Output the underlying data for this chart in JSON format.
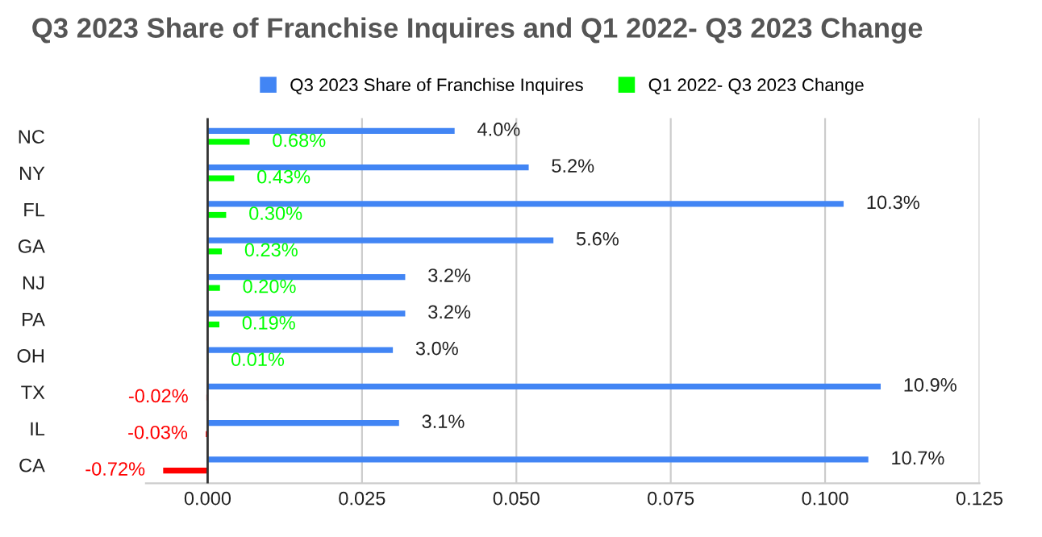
{
  "chart_data": {
    "type": "bar",
    "orientation": "horizontal",
    "title": "Q3 2023 Share of Franchise Inquires and Q1 2022- Q3 2023 Change",
    "categories": [
      "NC",
      "NY",
      "FL",
      "GA",
      "NJ",
      "PA",
      "OH",
      "TX",
      "IL",
      "CA"
    ],
    "series": [
      {
        "name": "Q3 2023 Share of Franchise Inquires",
        "color": "#4285f4",
        "values": [
          0.04,
          0.052,
          0.103,
          0.056,
          0.032,
          0.032,
          0.03,
          0.109,
          0.031,
          0.107
        ],
        "value_labels": [
          "4.0%",
          "5.2%",
          "10.3%",
          "5.6%",
          "3.2%",
          "3.2%",
          "3.0%",
          "10.9%",
          "3.1%",
          "10.7%"
        ]
      },
      {
        "name": "Q1 2022- Q3 2023 Change",
        "color": "#00ff00",
        "colors": [
          "#00ff00",
          "#00ff00",
          "#00ff00",
          "#00ff00",
          "#00ff00",
          "#00ff00",
          "#00ff00",
          "#ff0000",
          "#ff0000",
          "#ff0000"
        ],
        "values": [
          0.0068,
          0.0043,
          0.003,
          0.0023,
          0.002,
          0.0019,
          0.0001,
          -0.0002,
          -0.0003,
          -0.0072
        ],
        "value_labels": [
          "0.68%",
          "0.43%",
          "0.30%",
          "0.23%",
          "0.20%",
          "0.19%",
          "0.01%",
          "-0.02%",
          "-0.03%",
          "-0.72%"
        ]
      }
    ],
    "xlim": [
      -0.01,
      0.125
    ],
    "xticks": [
      {
        "value": 0,
        "label": "0.000"
      },
      0.025,
      {
        "value": 0.05,
        "label": "0.050"
      },
      0.075,
      {
        "value": 0.1,
        "label": "0.100"
      },
      0.125
    ],
    "grid": "x",
    "legend": "top"
  }
}
